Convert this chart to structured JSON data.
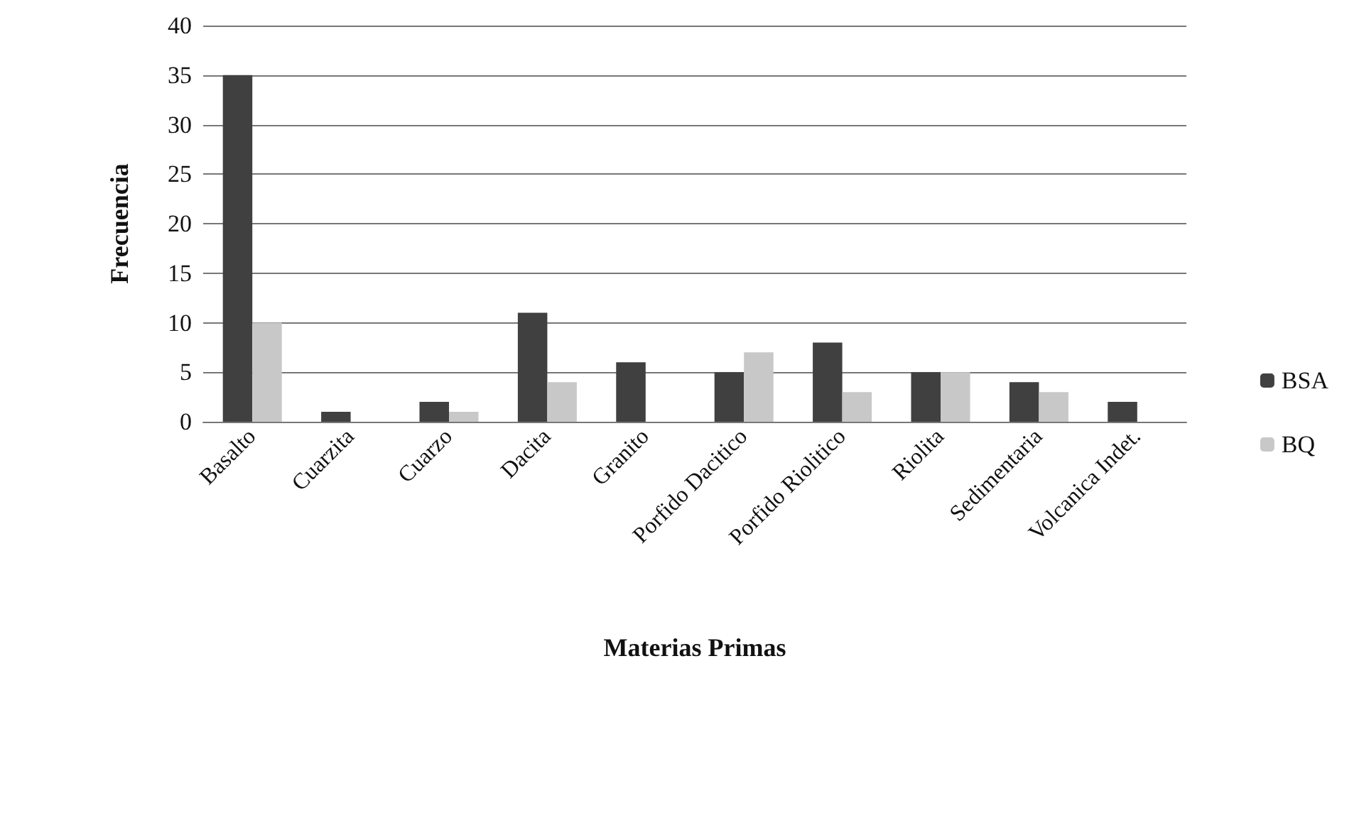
{
  "chart_data": {
    "type": "bar",
    "xlabel": "Materias Primas",
    "ylabel": "Frecuencia",
    "categories": [
      "Basalto",
      "Cuarzita",
      "Cuarzo",
      "Dacita",
      "Granito",
      "Porfido Dacitico",
      "Porfido Riolitico",
      "Riolita",
      "Sedimentaria",
      "Volcanica Indet."
    ],
    "series": [
      {
        "name": "BSA",
        "color": "#404040",
        "values": [
          35,
          1,
          2,
          11,
          6,
          5,
          8,
          5,
          4,
          2
        ]
      },
      {
        "name": "BQ",
        "color": "#c8c8c8",
        "values": [
          10,
          0,
          1,
          4,
          0,
          7,
          3,
          5,
          3,
          0
        ]
      }
    ],
    "ylim": [
      0,
      40
    ],
    "yticks": [
      0,
      5,
      10,
      15,
      20,
      25,
      30,
      35,
      40
    ],
    "grid": "y",
    "legend": "right"
  }
}
